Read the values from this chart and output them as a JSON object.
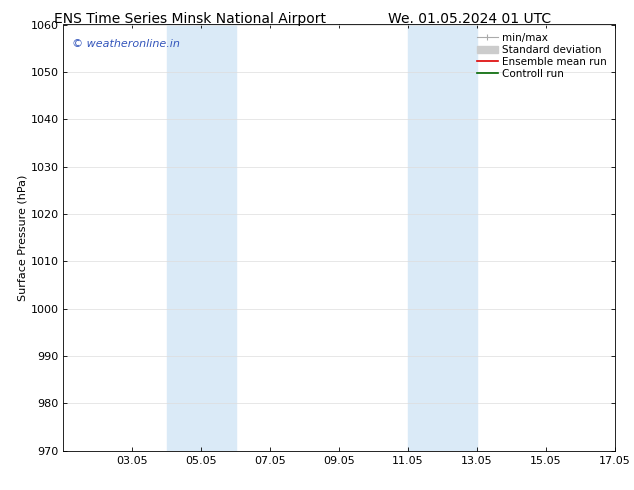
{
  "title_left": "ENS Time Series Minsk National Airport",
  "title_right": "We. 01.05.2024 01 UTC",
  "ylabel": "Surface Pressure (hPa)",
  "xlim": [
    1.05,
    17.05
  ],
  "ylim": [
    970,
    1060
  ],
  "yticks": [
    970,
    980,
    990,
    1000,
    1010,
    1020,
    1030,
    1040,
    1050,
    1060
  ],
  "xtick_labels": [
    "03.05",
    "05.05",
    "07.05",
    "09.05",
    "11.05",
    "13.05",
    "15.05",
    "17.05"
  ],
  "xtick_positions": [
    3.05,
    5.05,
    7.05,
    9.05,
    11.05,
    13.05,
    15.05,
    17.05
  ],
  "shaded_regions": [
    {
      "xmin": 4.05,
      "xmax": 6.05
    },
    {
      "xmin": 11.05,
      "xmax": 13.05
    }
  ],
  "shaded_color": "#daeaf7",
  "background_color": "#ffffff",
  "watermark_text": "© weatheronline.in",
  "watermark_color": "#3355bb",
  "legend_entries": [
    {
      "label": "min/max",
      "color": "#aaaaaa",
      "style": "minmax"
    },
    {
      "label": "Standard deviation",
      "color": "#cccccc",
      "style": "stddev"
    },
    {
      "label": "Ensemble mean run",
      "color": "#dd0000",
      "style": "line"
    },
    {
      "label": "Controll run",
      "color": "#006600",
      "style": "line"
    }
  ],
  "title_fontsize": 10,
  "ylabel_fontsize": 8,
  "tick_fontsize": 8,
  "legend_fontsize": 7.5,
  "watermark_fontsize": 8
}
